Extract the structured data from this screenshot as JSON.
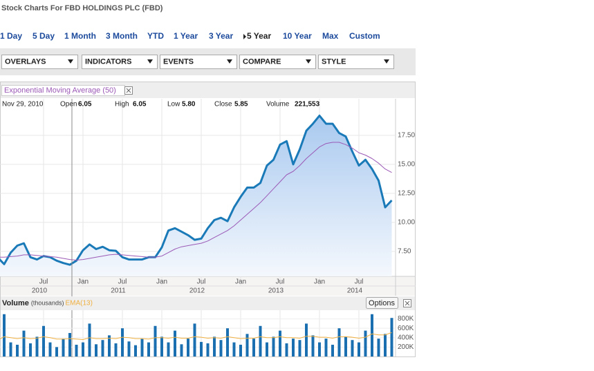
{
  "header": {
    "title": "Stock Charts For FBD HOLDINGS PLC (FBD)"
  },
  "ranges": [
    "1 Day",
    "5 Day",
    "1 Month",
    "3 Month",
    "YTD",
    "1 Year",
    "3 Year",
    "5 Year",
    "10 Year",
    "Max",
    "Custom"
  ],
  "toolbar": [
    "OVERLAYS",
    "INDICATORS",
    "EVENTS",
    "COMPARE",
    "STYLE"
  ],
  "info": {
    "date": "Nov 29, 2010",
    "open_label": "Open",
    "open": "6.05",
    "high_label": "High",
    "high": "6.05",
    "low_label": "Low",
    "low": "5.80",
    "close_label": "Close",
    "close": "5.85",
    "volume_label": "Volume",
    "volume": "221,553"
  },
  "options_button": "Options",
  "chart_data": [
    {
      "type": "area",
      "x": [
        "2009-12",
        "2010-01",
        "2010-02",
        "2010-03",
        "2010-04",
        "2010-05",
        "2010-06",
        "2010-07",
        "2010-08",
        "2010-09",
        "2010-10",
        "2010-11",
        "2010-12",
        "2011-01",
        "2011-02",
        "2011-03",
        "2011-04",
        "2011-05",
        "2011-06",
        "2011-07",
        "2011-08",
        "2011-09",
        "2011-10",
        "2011-11",
        "2011-12",
        "2012-01",
        "2012-02",
        "2012-03",
        "2012-04",
        "2012-05",
        "2012-06",
        "2012-07",
        "2012-08",
        "2012-09",
        "2012-10",
        "2012-11",
        "2012-12",
        "2013-01",
        "2013-02",
        "2013-03",
        "2013-04",
        "2013-05",
        "2013-06",
        "2013-07",
        "2013-08",
        "2013-09",
        "2013-10",
        "2013-11",
        "2013-12",
        "2014-01",
        "2014-02",
        "2014-03",
        "2014-04",
        "2014-05",
        "2014-06",
        "2014-07",
        "2014-08",
        "2014-09",
        "2014-10",
        "2014-11",
        "2014-12"
      ],
      "series": [
        {
          "color": "#1a7ab8",
          "values": [
            7.0,
            6.4,
            7.4,
            8.0,
            8.2,
            7.0,
            6.8,
            7.1,
            7.0,
            6.7,
            6.5,
            6.35,
            6.7,
            7.6,
            8.1,
            7.7,
            7.9,
            7.6,
            7.55,
            7.0,
            6.8,
            6.8,
            6.8,
            7.0,
            7.0,
            7.85,
            9.3,
            9.5,
            9.2,
            8.9,
            8.5,
            8.6,
            9.5,
            10.2,
            10.4,
            10.1,
            11.3,
            12.2,
            13.0,
            13.0,
            13.4,
            14.9,
            15.4,
            16.7,
            17.0,
            15.0,
            16.3,
            17.9,
            18.5,
            19.2,
            18.5,
            18.5,
            17.7,
            17.4,
            16.1,
            14.9,
            15.4,
            14.6,
            13.6,
            11.3,
            11.9
          ]
        },
        {
          "name": "Exponential Moving Average (50)",
          "type": "line",
          "color": "#9b59b6",
          "values": [
            7.0,
            7.0,
            7.05,
            7.1,
            7.2,
            7.2,
            7.15,
            7.1,
            7.05,
            7.0,
            6.9,
            6.8,
            6.75,
            6.8,
            6.9,
            7.0,
            7.1,
            7.2,
            7.25,
            7.2,
            7.15,
            7.1,
            7.05,
            7.0,
            7.0,
            7.1,
            7.4,
            7.7,
            7.9,
            8.0,
            8.1,
            8.2,
            8.4,
            8.7,
            9.0,
            9.3,
            9.7,
            10.2,
            10.7,
            11.2,
            11.7,
            12.3,
            12.9,
            13.5,
            14.1,
            14.4,
            14.9,
            15.5,
            16.0,
            16.5,
            16.8,
            16.9,
            16.9,
            16.7,
            16.4,
            16.0,
            15.8,
            15.5,
            15.1,
            14.6,
            14.3
          ]
        }
      ],
      "ylim": [
        5.35,
        20.65
      ],
      "yticks": [
        {
          "value": 7.5,
          "label": "7.50"
        },
        {
          "value": 10,
          "label": "10.00"
        },
        {
          "value": 12.5,
          "label": "12.50"
        },
        {
          "value": 15,
          "label": "15.00"
        },
        {
          "value": 17.5,
          "label": "17.50"
        }
      ],
      "xticks": [
        {
          "value": "2010-07",
          "label": "Jul"
        },
        {
          "value": "2011-01",
          "label": "Jan"
        },
        {
          "value": "2011-07",
          "label": "Jul"
        },
        {
          "value": "2012-01",
          "label": "Jan"
        },
        {
          "value": "2012-07",
          "label": "Jul"
        },
        {
          "value": "2013-01",
          "label": "Jan"
        },
        {
          "value": "2013-07",
          "label": "Jul"
        },
        {
          "value": "2014-01",
          "label": "Jan"
        },
        {
          "value": "2014-07",
          "label": "Jul"
        }
      ],
      "year_ticks": [
        {
          "value": "2010-07",
          "label": "2010"
        },
        {
          "value": "2011-07",
          "label": "2011"
        },
        {
          "value": "2012-07",
          "label": "2012"
        },
        {
          "value": "2013-07",
          "label": "2013"
        },
        {
          "value": "2014-07",
          "label": "2014"
        }
      ],
      "grid": true
    },
    {
      "type": "bar",
      "title": "Volume",
      "subtitle": "(thousands)",
      "x": [
        "2009-12",
        "2010-01",
        "2010-02",
        "2010-03",
        "2010-04",
        "2010-05",
        "2010-06",
        "2010-07",
        "2010-08",
        "2010-09",
        "2010-10",
        "2010-11",
        "2010-12",
        "2011-01",
        "2011-02",
        "2011-03",
        "2011-04",
        "2011-05",
        "2011-06",
        "2011-07",
        "2011-08",
        "2011-09",
        "2011-10",
        "2011-11",
        "2011-12",
        "2012-01",
        "2012-02",
        "2012-03",
        "2012-04",
        "2012-05",
        "2012-06",
        "2012-07",
        "2012-08",
        "2012-09",
        "2012-10",
        "2012-11",
        "2012-12",
        "2013-01",
        "2013-02",
        "2013-03",
        "2013-04",
        "2013-05",
        "2013-06",
        "2013-07",
        "2013-08",
        "2013-09",
        "2013-10",
        "2013-11",
        "2013-12",
        "2014-01",
        "2014-02",
        "2014-03",
        "2014-04",
        "2014-05",
        "2014-06",
        "2014-07",
        "2014-08",
        "2014-09",
        "2014-10",
        "2014-11",
        "2014-12"
      ],
      "series": [
        {
          "color": "#1a6fb0",
          "values": [
            350000,
            900000,
            300000,
            250000,
            550000,
            280000,
            420000,
            650000,
            300000,
            200000,
            380000,
            500000,
            250000,
            300000,
            700000,
            260000,
            350000,
            450000,
            280000,
            600000,
            320000,
            240000,
            380000,
            300000,
            650000,
            420000,
            300000,
            550000,
            260000,
            380000,
            700000,
            310000,
            280000,
            420000,
            350000,
            600000,
            300000,
            250000,
            480000,
            380000,
            650000,
            300000,
            420000,
            550000,
            280000,
            380000,
            350000,
            700000,
            450000,
            300000,
            380000,
            250000,
            600000,
            420000,
            350000,
            300000,
            550000,
            900000,
            380000,
            480000,
            820000
          ]
        },
        {
          "name": "EMA(13)",
          "type": "line",
          "color": "#f0b040",
          "values": [
            350000,
            420000,
            400000,
            380000,
            400000,
            380000,
            390000,
            420000,
            400000,
            370000,
            370000,
            380000,
            370000,
            360000,
            400000,
            380000,
            380000,
            390000,
            380000,
            410000,
            400000,
            380000,
            380000,
            370000,
            400000,
            400000,
            390000,
            410000,
            390000,
            390000,
            420000,
            410000,
            390000,
            400000,
            390000,
            420000,
            400000,
            380000,
            390000,
            390000,
            420000,
            400000,
            400000,
            420000,
            400000,
            400000,
            390000,
            430000,
            430000,
            410000,
            410000,
            390000,
            420000,
            420000,
            410000,
            390000,
            410000,
            480000,
            460000,
            460000,
            510000
          ]
        }
      ],
      "ylim": [
        0,
        970000
      ],
      "yticks": [
        {
          "value": 200000,
          "label": "200K"
        },
        {
          "value": 400000,
          "label": "400K"
        },
        {
          "value": 600000,
          "label": "600K"
        },
        {
          "value": 800000,
          "label": "800K"
        }
      ],
      "grid": true
    }
  ]
}
